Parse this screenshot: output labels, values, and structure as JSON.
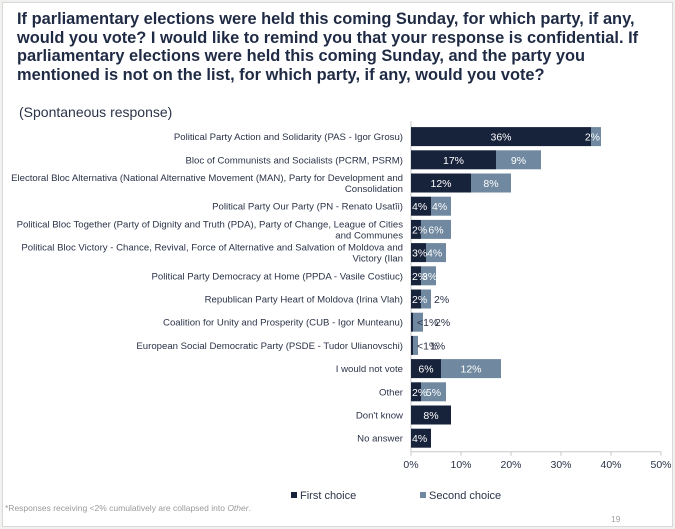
{
  "title": "If parliamentary elections were held this coming Sunday, for which party, if any, would you vote? I would like to remind you that your response is confidential. If parliamentary elections were held this coming Sunday, and the party you mentioned is not on the list, for which party, if any, would you vote?",
  "subtitle": "(Spontaneous response)",
  "footnote": {
    "prefix": "*Responses receiving <2% cumulatively are collapsed into ",
    "emph": "Other",
    "suffix": "."
  },
  "page_number": "19",
  "colors": {
    "first": "#17223b",
    "second": "#7089a0",
    "axis": "#c8c8c8",
    "text": "#2b3348"
  },
  "chart_data": {
    "type": "bar",
    "orientation": "horizontal",
    "stacked": true,
    "xlim": [
      0,
      50
    ],
    "xticks": [
      "0%",
      "10%",
      "20%",
      "30%",
      "40%",
      "50%"
    ],
    "categories": [
      [
        "Political Party Action and Solidarity (PAS - Igor Grosu)"
      ],
      [
        "Bloc of Communists and Socialists (PCRM, PSRM)"
      ],
      [
        "Electoral Bloc Alternativa (National Alternative Movement (MAN), Party for Development and",
        "Consolidation"
      ],
      [
        "Political Party Our Party (PN - Renato Usatîi)"
      ],
      [
        "Political Bloc Together (Party of Dignity and Truth (PDA), Party of Change, League of Cities",
        "and Communes"
      ],
      [
        "Political Bloc Victory - Chance, Revival, Force of Alternative and Salvation of Moldova and",
        "Victory (Ilan"
      ],
      [
        "Political Party Democracy at Home (PPDA - Vasile Costiuc)"
      ],
      [
        "Republican Party Heart of Moldova (Irina Vlah)"
      ],
      [
        "Coalition for Unity and Prosperity (CUB - Igor Munteanu)"
      ],
      [
        "European Social Democratic Party (PSDE - Tudor Ulianovschi)"
      ],
      [
        "I would not vote"
      ],
      [
        "Other"
      ],
      [
        "Don't know"
      ],
      [
        "No answer"
      ]
    ],
    "series": [
      {
        "name": "First choice",
        "values": [
          36,
          17,
          12,
          4,
          2,
          3,
          2,
          2,
          0.4,
          0.4,
          6,
          2,
          8,
          4
        ],
        "labels": [
          "36%",
          "17%",
          "12%",
          "4%",
          "2%",
          "3%",
          "2%",
          "2%",
          "<1%",
          "<1%",
          "6%",
          "2%",
          "8%",
          "4%"
        ]
      },
      {
        "name": "Second choice",
        "values": [
          2,
          9,
          8,
          4,
          6,
          4,
          3,
          2,
          2,
          1,
          12,
          5,
          0,
          0
        ],
        "labels": [
          "2%",
          "9%",
          "8%",
          "4%",
          "6%",
          "4%",
          "3%",
          "2%",
          "2%",
          "1%",
          "12%",
          "5%",
          "",
          ""
        ]
      }
    ]
  }
}
